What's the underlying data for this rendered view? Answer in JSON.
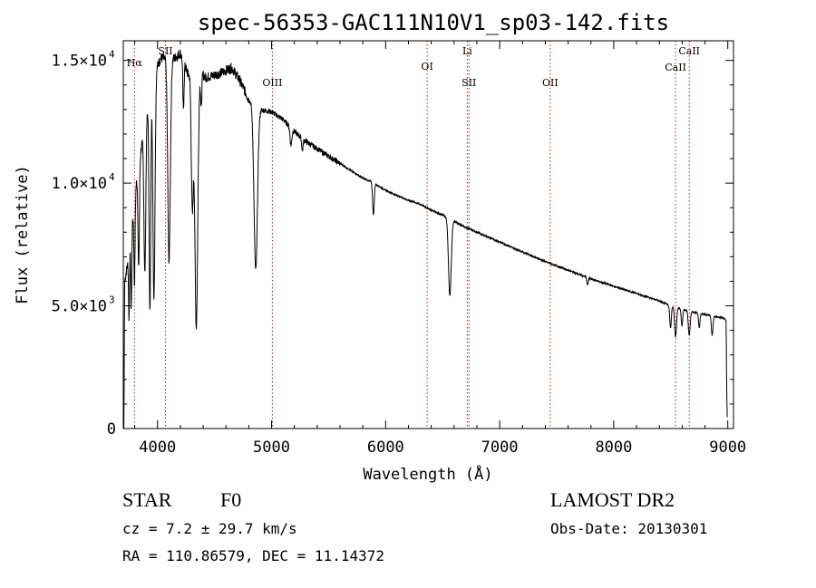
{
  "chart_data": {
    "type": "line",
    "title": "spec-56353-GAC111N10V1_sp03-142.fits",
    "xlabel": "Wavelength (Å)",
    "ylabel": "Flux (relative)",
    "xlim": [
      3700,
      9050
    ],
    "ylim": [
      0,
      15800
    ],
    "x_ticks": [
      {
        "value": 4000,
        "label": "4000"
      },
      {
        "value": 5000,
        "label": "5000"
      },
      {
        "value": 6000,
        "label": "6000"
      },
      {
        "value": 7000,
        "label": "7000"
      },
      {
        "value": 8000,
        "label": "8000"
      },
      {
        "value": 9000,
        "label": "9000"
      }
    ],
    "y_ticks": [
      {
        "value": 0,
        "label": "0"
      },
      {
        "value": 5000,
        "label": "5.0×10",
        "exp": "3"
      },
      {
        "value": 10000,
        "label": "1.0×10",
        "exp": "4"
      },
      {
        "value": 15000,
        "label": "1.5×10",
        "exp": "4"
      }
    ],
    "spectrum_color": "#000000",
    "line_marker_color": "#b22222",
    "continuum_anchors": [
      [
        3705,
        0
      ],
      [
        3712,
        6000
      ],
      [
        3730,
        6500
      ],
      [
        3760,
        7200
      ],
      [
        3800,
        9500
      ],
      [
        3850,
        11200
      ],
      [
        3920,
        13200
      ],
      [
        3980,
        14600
      ],
      [
        4030,
        15100
      ],
      [
        4100,
        15000
      ],
      [
        4150,
        15100
      ],
      [
        4200,
        15300
      ],
      [
        4270,
        14400
      ],
      [
        4350,
        14700
      ],
      [
        4420,
        14300
      ],
      [
        4500,
        14400
      ],
      [
        4560,
        14500
      ],
      [
        4650,
        14700
      ],
      [
        4720,
        14200
      ],
      [
        4800,
        13400
      ],
      [
        4900,
        13000
      ],
      [
        5000,
        12900
      ],
      [
        5100,
        12600
      ],
      [
        5200,
        12100
      ],
      [
        5300,
        11700
      ],
      [
        5400,
        11400
      ],
      [
        5500,
        11100
      ],
      [
        5600,
        10800
      ],
      [
        5700,
        10500
      ],
      [
        5800,
        10200
      ],
      [
        5900,
        10000
      ],
      [
        6000,
        9700
      ],
      [
        6100,
        9500
      ],
      [
        6200,
        9300
      ],
      [
        6300,
        9150
      ],
      [
        6400,
        8900
      ],
      [
        6500,
        8700
      ],
      [
        6600,
        8450
      ],
      [
        6700,
        8200
      ],
      [
        6800,
        8000
      ],
      [
        6900,
        7800
      ],
      [
        7000,
        7600
      ],
      [
        7200,
        7200
      ],
      [
        7400,
        6800
      ],
      [
        7600,
        6450
      ],
      [
        7800,
        6100
      ],
      [
        8000,
        5800
      ],
      [
        8200,
        5500
      ],
      [
        8400,
        5200
      ],
      [
        8500,
        5000
      ],
      [
        8600,
        4850
      ],
      [
        8800,
        4650
      ],
      [
        8960,
        4500
      ],
      [
        8985,
        4400
      ],
      [
        8990,
        1800
      ],
      [
        8996,
        200
      ]
    ],
    "absorption_features": [
      {
        "center": 3750,
        "depth": 2500,
        "width": 4
      },
      {
        "center": 3770,
        "depth": 2800,
        "width": 4
      },
      {
        "center": 3798,
        "depth": 3500,
        "width": 5
      },
      {
        "center": 3835,
        "depth": 4200,
        "width": 6
      },
      {
        "center": 3889,
        "depth": 6000,
        "width": 8
      },
      {
        "center": 3933,
        "depth": 8800,
        "width": 7
      },
      {
        "center": 3969,
        "depth": 9000,
        "width": 9
      },
      {
        "center": 4101,
        "depth": 8200,
        "width": 11
      },
      {
        "center": 4227,
        "depth": 2000,
        "width": 5
      },
      {
        "center": 4305,
        "depth": 5500,
        "width": 9
      },
      {
        "center": 4340,
        "depth": 10500,
        "width": 13
      },
      {
        "center": 4383,
        "depth": 1500,
        "width": 5
      },
      {
        "center": 4861,
        "depth": 6700,
        "width": 15
      },
      {
        "center": 5170,
        "depth": 700,
        "width": 8
      },
      {
        "center": 5270,
        "depth": 500,
        "width": 6
      },
      {
        "center": 5893,
        "depth": 1300,
        "width": 7
      },
      {
        "center": 6563,
        "depth": 3100,
        "width": 12
      },
      {
        "center": 7770,
        "depth": 300,
        "width": 6
      },
      {
        "center": 8498,
        "depth": 900,
        "width": 7
      },
      {
        "center": 8542,
        "depth": 1200,
        "width": 8
      },
      {
        "center": 8598,
        "depth": 700,
        "width": 6
      },
      {
        "center": 8662,
        "depth": 1000,
        "width": 8
      },
      {
        "center": 8750,
        "depth": 600,
        "width": 6
      },
      {
        "center": 8863,
        "depth": 800,
        "width": 7
      }
    ],
    "spectral_lines": [
      {
        "wavelength": 3798,
        "label": "Hα"
      },
      {
        "wavelength": 4070,
        "label": "SII"
      },
      {
        "wavelength": 5007,
        "label": "OIII"
      },
      {
        "wavelength": 6364,
        "label": "OI"
      },
      {
        "wavelength": 6716,
        "label": "Li"
      },
      {
        "wavelength": 6731,
        "label": "SII"
      },
      {
        "wavelength": 7443,
        "label": "OII"
      },
      {
        "wavelength": 8542,
        "label": "CaII"
      },
      {
        "wavelength": 8662,
        "label": "CaII"
      }
    ]
  },
  "info": {
    "object_class": "STAR",
    "subclass": "F0",
    "survey": "LAMOST DR2",
    "redshift": "cz = 7.2 ± 29.7 km/s",
    "obs_date": "Obs-Date: 20130301",
    "coords": "RA = 110.86579, DEC =  11.14372"
  }
}
